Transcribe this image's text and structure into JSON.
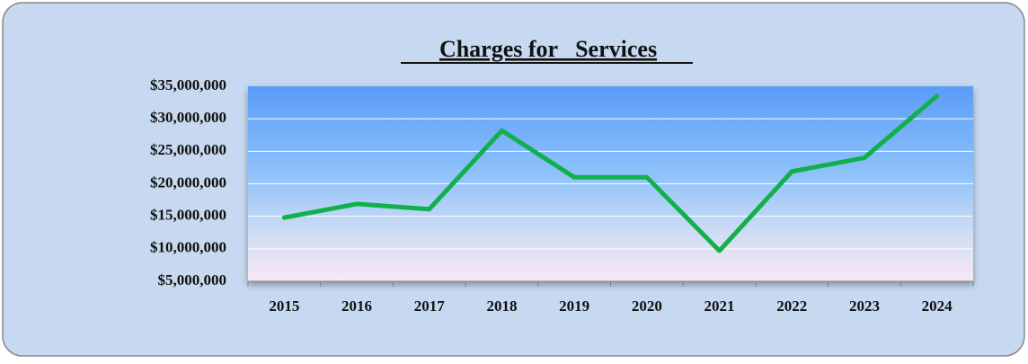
{
  "chart_data": {
    "type": "line",
    "title": "Charges for   Services",
    "categories": [
      "2015",
      "2016",
      "2017",
      "2018",
      "2019",
      "2020",
      "2021",
      "2022",
      "2023",
      "2024"
    ],
    "values": [
      14800000,
      16900000,
      16100000,
      28200000,
      21000000,
      21000000,
      9700000,
      21900000,
      24000000,
      33500000
    ],
    "color": "#12b04c",
    "ylim": [
      5000000,
      35000000
    ],
    "yticks": [
      {
        "value": 5000000,
        "label": "$5,000,000"
      },
      {
        "value": 10000000,
        "label": "$10,000,000"
      },
      {
        "value": 15000000,
        "label": "$15,000,000"
      },
      {
        "value": 20000000,
        "label": "$20,000,000"
      },
      {
        "value": 25000000,
        "label": "$25,000,000"
      },
      {
        "value": 30000000,
        "label": "$30,000,000"
      },
      {
        "value": 35000000,
        "label": "$35,000,000"
      }
    ],
    "grid": true
  }
}
